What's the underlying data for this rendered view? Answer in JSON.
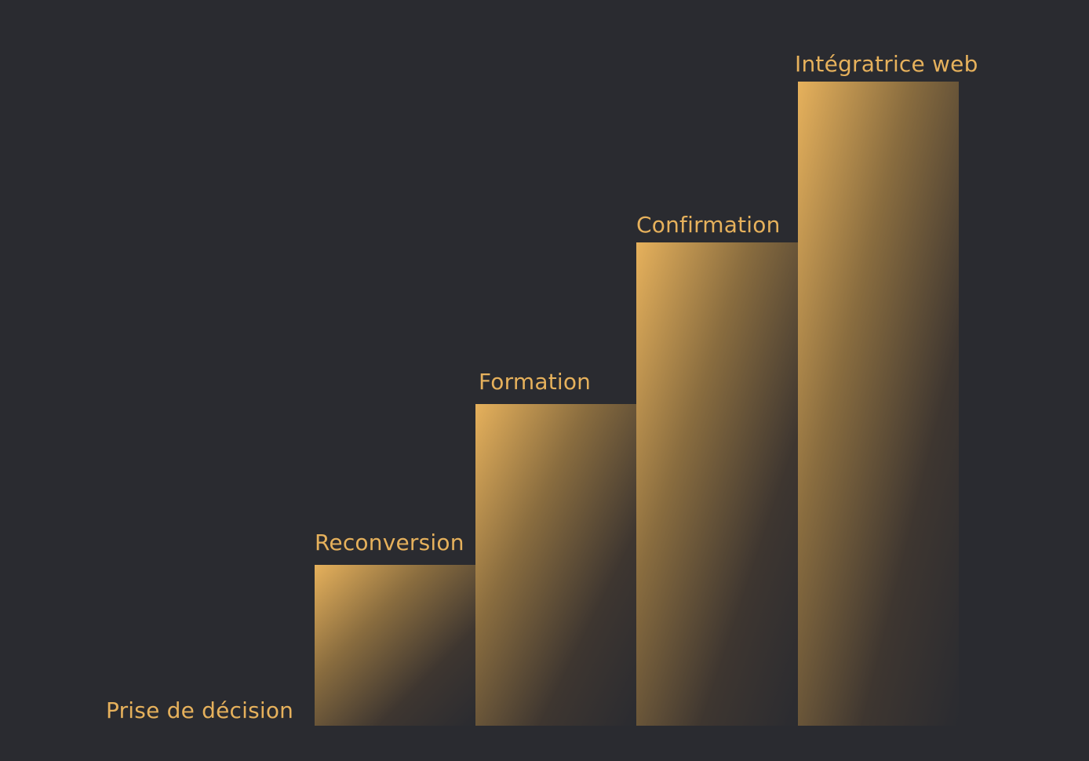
{
  "colors": {
    "background": "#2a2b30",
    "accent": "#e6b15c"
  },
  "steps": [
    {
      "label": "Prise de décision"
    },
    {
      "label": "Reconversion"
    },
    {
      "label": "Formation"
    },
    {
      "label": "Confirmation"
    },
    {
      "label": "Intégratrice web"
    }
  ]
}
